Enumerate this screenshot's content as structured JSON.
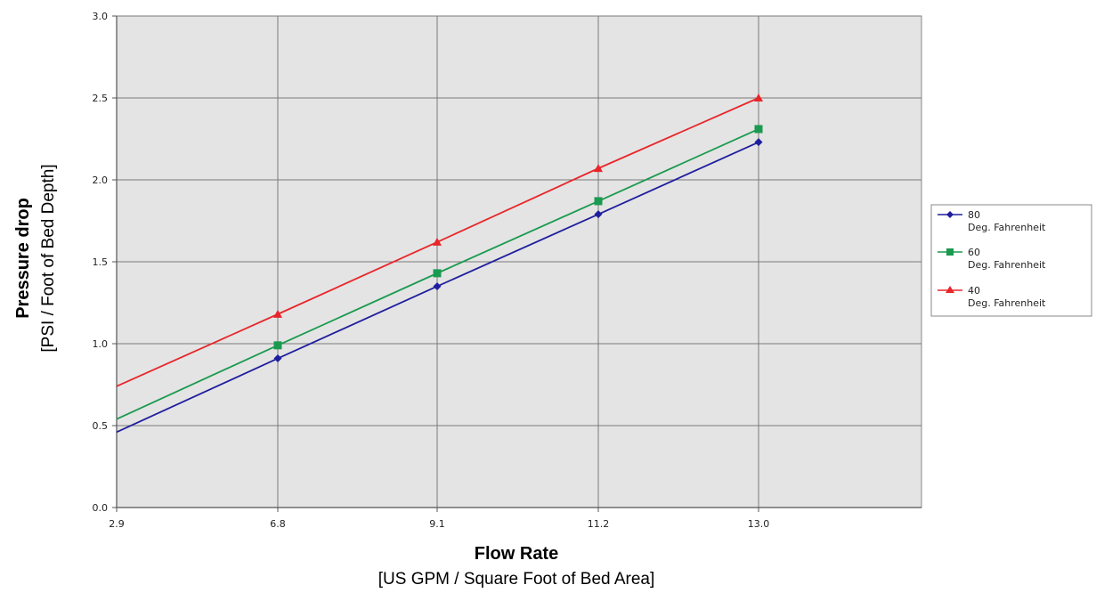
{
  "chart_data": {
    "type": "line",
    "x": [
      2.9,
      6.8,
      9.1,
      11.2,
      13.0
    ],
    "x_tick_labels": [
      "2.9",
      "6.8",
      "9.1",
      "11.2",
      "13.0"
    ],
    "y_tick_labels": [
      "0.0",
      "0.5",
      "1.0",
      "1.5",
      "2.0",
      "2.5",
      "3.0"
    ],
    "ylim": [
      0,
      3.0
    ],
    "grid": true,
    "legend_position": "right",
    "xlabel": "Flow Rate",
    "xlabel_sub": "[US GPM / Square Foot of Bed Area]",
    "ylabel": "Pressure drop",
    "ylabel_sub": "[PSI / Foot of Bed Depth]",
    "series": [
      {
        "label_line1": "80",
        "label_line2": "Deg. Fahrenheit",
        "color": "#1f1f9e",
        "marker": "diamond",
        "values": [
          0.46,
          0.91,
          1.35,
          1.79,
          2.23
        ]
      },
      {
        "label_line1": "60",
        "label_line2": "Deg. Fahrenheit",
        "color": "#1a9a4f",
        "marker": "square",
        "values": [
          0.54,
          0.99,
          1.43,
          1.87,
          2.31
        ]
      },
      {
        "label_line1": "40",
        "label_line2": "Deg. Fahrenheit",
        "color": "#e8262a",
        "marker": "triangle",
        "values": [
          0.74,
          1.18,
          1.62,
          2.07,
          2.5
        ]
      }
    ]
  },
  "colors": {
    "plot_background": "#e4e4e4",
    "grid": "#7a7a7a"
  }
}
